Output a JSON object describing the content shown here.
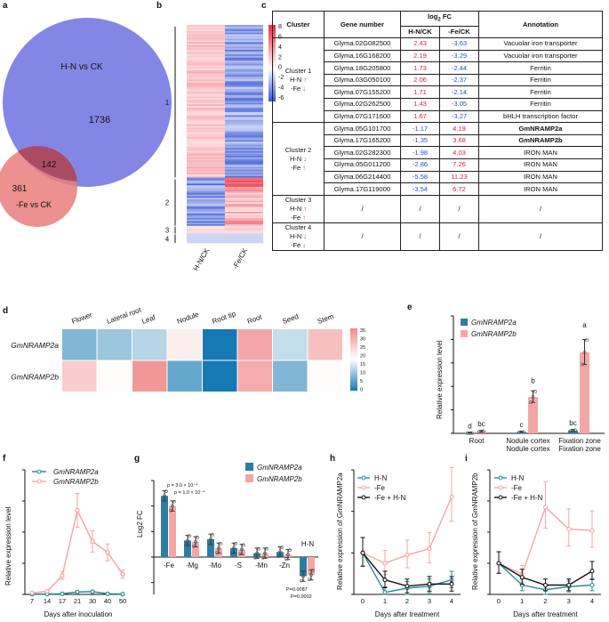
{
  "panel_labels": [
    "a",
    "b",
    "c",
    "d",
    "e",
    "f",
    "g",
    "h",
    "i"
  ],
  "venn": {
    "set1": "H-N vs CK",
    "set2": "-Fe vs CK",
    "only1": "1736",
    "overlap": "142",
    "only2": "361",
    "color1": "#7d7fe4",
    "color2": "#e97c7c"
  },
  "heatmap_b": {
    "columns": [
      "H-N/CK",
      "-Fe/CK"
    ],
    "cluster_labels": [
      "1",
      "2",
      "3",
      "4"
    ],
    "scale_ticks": [
      "8",
      "6",
      "4",
      "2",
      "0",
      "-2",
      "-4",
      "-6"
    ]
  },
  "table": {
    "headers": {
      "cluster": "Cluster",
      "gene": "Gene number",
      "log": "log",
      "log_sub": "2",
      "log_tail": " FC",
      "hn": "H-N/CK",
      "fe": "-Fe/CK",
      "annot": "Annotation"
    },
    "clusters": [
      {
        "name": "Cluster 1",
        "l1": "H-N",
        "a1": "↑",
        "l2": "-Fe",
        "a2": "↓",
        "rows": [
          {
            "gene": "Glyma.02G082500",
            "hn": "2.43",
            "fe": "-3.63",
            "annot": "Vacuolar iron transporter"
          },
          {
            "gene": "Glyma.16G168200",
            "hn": "2.19",
            "fe": "-3.29",
            "annot": "Vacuolar iron transporter"
          },
          {
            "gene": "Glyma.18G205800",
            "hn": "1.73",
            "fe": "-2.44",
            "annot": "Ferritin"
          },
          {
            "gene": "Glyma.03G050100",
            "hn": "2.06",
            "fe": "-2.37",
            "annot": "Ferritin"
          },
          {
            "gene": "Glyma.07G155200",
            "hn": "1.71",
            "fe": "-2.14",
            "annot": "Ferritin"
          },
          {
            "gene": "Glyma.02G262500",
            "hn": "1.43",
            "fe": "-3.05",
            "annot": "Ferritin"
          },
          {
            "gene": "Glyma.07G171600",
            "hn": "1.67",
            "fe": "-3.27",
            "annot": "bHLH transcription factor"
          }
        ]
      },
      {
        "name": "Cluster 2",
        "l1": "H-N",
        "a1": "↓",
        "l2": "-Fe",
        "a2": "↑",
        "rows": [
          {
            "gene": "Glyma.05G101700",
            "hn": "-1.17",
            "fe": "4.19",
            "annot": "GmNRAMP2a"
          },
          {
            "gene": "Glyma.17G165200",
            "hn": "-1.35",
            "fe": "3.68",
            "annot": "GmNRAMP2b"
          },
          {
            "gene": "Glyma.02G282300",
            "hn": "-1.98",
            "fe": "4.03",
            "annot": "IRON MAN"
          },
          {
            "gene": "Glyma.05G011200",
            "hn": "-2.86",
            "fe": "7.26",
            "annot": "IRON MAN"
          },
          {
            "gene": "Glyma.06G214400",
            "hn": "-5.58",
            "fe": "11.23",
            "annot": "IRON MAN"
          },
          {
            "gene": "Glyma.17G119000",
            "hn": "-3.54",
            "fe": "6.72",
            "annot": "IRON MAN"
          }
        ]
      },
      {
        "name": "Cluster 3",
        "l1": "H-N",
        "a1": "↑",
        "l2": "-Fe",
        "a2": "↑",
        "slash": "/"
      },
      {
        "name": "Cluster 4",
        "l1": "H-N",
        "a1": "↓",
        "l2": "-Fe",
        "a2": "↓",
        "slash": "/"
      }
    ]
  },
  "heatmap_d": {
    "tissues": [
      "Flower",
      "Lateral root",
      "Leaf",
      "Nodule",
      "Root tip",
      "Root",
      "Seed",
      "Stem"
    ],
    "genes": [
      "GmNRAMP2a",
      "GmNRAMP2b"
    ],
    "values": [
      [
        8,
        10,
        12,
        20,
        0,
        31,
        13,
        27
      ],
      [
        25,
        18,
        33,
        6,
        0,
        30,
        8,
        18
      ]
    ],
    "scale_max": "35",
    "scale_ticks": [
      "35",
      "30",
      "25",
      "20",
      "15",
      "10",
      "5",
      "0"
    ]
  },
  "chart_data": [
    {
      "panel": "e",
      "type": "bar",
      "title": "",
      "ylabel": "Relative expression level",
      "ylim": [
        0,
        50
      ],
      "categories": [
        "Root",
        "Nodule cortex",
        "Fixation zone"
      ],
      "series": [
        {
          "name": "GmNRAMP2a",
          "color": "#2b7da3",
          "values": [
            0.1,
            0.5,
            1.2
          ],
          "letters": [
            "d",
            "c",
            "bc"
          ]
        },
        {
          "name": "GmNRAMP2b",
          "color": "#f4a6a6",
          "values": [
            0.8,
            15.5,
            34.5
          ],
          "letters": [
            "bc",
            "b",
            "a"
          ]
        }
      ]
    },
    {
      "panel": "f",
      "type": "line",
      "ylabel": "Relative expression level",
      "xlabel": "Days after inoculation",
      "x": [
        7,
        14,
        17,
        21,
        30,
        40,
        50
      ],
      "ylim": [
        0,
        40
      ],
      "series": [
        {
          "name": "GmNRAMP2a",
          "color": "#2a8a99",
          "values": [
            0.1,
            0.1,
            0.2,
            0.8,
            0.9,
            0.2,
            0.1
          ]
        },
        {
          "name": "GmNRAMP2b",
          "color": "#f4a6a6",
          "values": [
            0.5,
            1.0,
            6.0,
            27.0,
            17.0,
            13.5,
            6.5
          ]
        }
      ]
    },
    {
      "panel": "g",
      "type": "bar",
      "ylabel": "Log2 FC",
      "categories": [
        "-Fe",
        "-Mg",
        "-Mo",
        "-S",
        "-Mn",
        "-Zn",
        "H-N"
      ],
      "ylim": [
        -3,
        6
      ],
      "series": [
        {
          "name": "GmNRAMP2a",
          "color": "#2b7da3",
          "values": [
            4.8,
            1.3,
            1.4,
            0.7,
            0.3,
            0.4,
            -1.5
          ]
        },
        {
          "name": "GmNRAMP2b",
          "color": "#f4a6a6",
          "values": [
            4.0,
            1.2,
            0.7,
            0.6,
            0.3,
            0.2,
            -1.4
          ]
        }
      ],
      "annotations": [
        "p = 3.0 × 10⁻⁴",
        "p = 1.0 × 10⁻⁴",
        "P=0.0087",
        "P=0.0002"
      ]
    },
    {
      "panel": "h",
      "type": "line",
      "ylabel": "Relative expression of GmNRAMP2a",
      "xlabel": "Days after treatment",
      "x": [
        0,
        1,
        2,
        3,
        4
      ],
      "ylim": [
        0,
        3
      ],
      "series": [
        {
          "name": "H-N",
          "color": "#2a8a99",
          "values": [
            1.0,
            0.05,
            0.15,
            0.2,
            0.35
          ]
        },
        {
          "name": "-Fe",
          "color": "#f4a6a6",
          "values": [
            1.0,
            0.75,
            0.95,
            1.1,
            2.35
          ]
        },
        {
          "name": "-Fe + H-N",
          "color": "#111111",
          "values": [
            1.0,
            0.35,
            0.2,
            0.25,
            0.25
          ]
        }
      ]
    },
    {
      "panel": "i",
      "type": "line",
      "ylabel": "Relative expression of GmNRAMP2b",
      "xlabel": "Days after treatment",
      "x": [
        0,
        1,
        2,
        3,
        4
      ],
      "ylim": [
        0,
        4
      ],
      "series": [
        {
          "name": "H-N",
          "color": "#2a8a99",
          "values": [
            1.0,
            0.3,
            0.15,
            0.25,
            0.3
          ]
        },
        {
          "name": "-Fe",
          "color": "#f4a6a6",
          "values": [
            1.0,
            0.65,
            2.8,
            2.1,
            2.05
          ]
        },
        {
          "name": "-Fe + H-N",
          "color": "#111111",
          "values": [
            1.0,
            0.55,
            0.3,
            0.3,
            0.75
          ]
        }
      ]
    }
  ]
}
